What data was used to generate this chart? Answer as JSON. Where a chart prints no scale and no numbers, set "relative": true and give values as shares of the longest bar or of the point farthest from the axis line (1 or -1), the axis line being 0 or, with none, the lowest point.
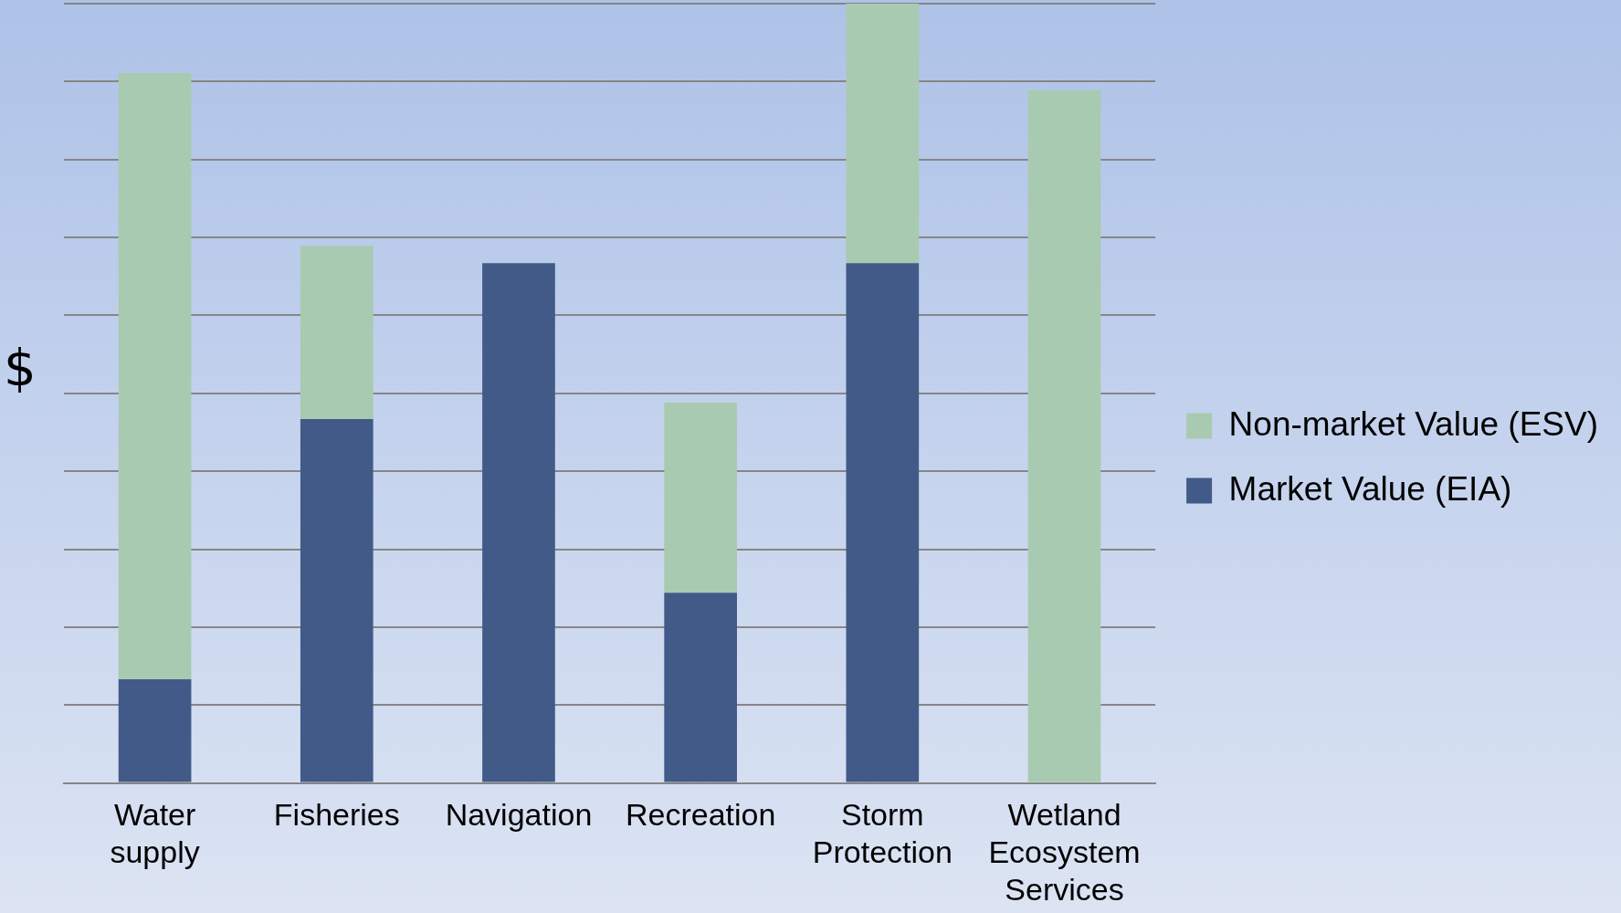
{
  "chart_data": {
    "type": "bar",
    "stacked": true,
    "relative": true,
    "ylabel": "$",
    "categories": [
      "Water supply",
      "Fisheries",
      "Navigation",
      "Recreation",
      "Storm Protection",
      "Wetland Ecosystem Services"
    ],
    "series": [
      {
        "name": "Market Value (EIA)",
        "color": "#425a87",
        "values": [
          0.133,
          0.467,
          0.667,
          0.244,
          0.667,
          0
        ]
      },
      {
        "name": "Non-market Value (ESV)",
        "color": "#a8cab0",
        "values": [
          0.778,
          0.222,
          0,
          0.244,
          0.333,
          0.889
        ]
      }
    ],
    "grid": "y",
    "legend": "right"
  }
}
